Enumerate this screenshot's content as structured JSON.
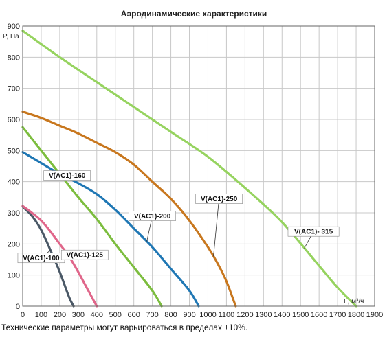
{
  "chart_data": {
    "type": "line",
    "title": "Аэродинамические характеристики",
    "xlabel": "L, м³/ч",
    "ylabel": "P, Па",
    "xlim": [
      0,
      1900
    ],
    "ylim": [
      0,
      900
    ],
    "xticks": [
      0,
      100,
      200,
      300,
      400,
      500,
      600,
      700,
      800,
      900,
      1000,
      1100,
      1200,
      1300,
      1400,
      1500,
      1600,
      1700,
      1800,
      1900
    ],
    "yticks": [
      0,
      100,
      200,
      300,
      400,
      500,
      600,
      700,
      800,
      900
    ],
    "grid": true,
    "legend": "inline labels",
    "series": [
      {
        "name": "V(AC1)-100",
        "color": "#4a5866",
        "x": [
          0,
          50,
          100,
          150,
          200,
          250,
          275
        ],
        "y": [
          320,
          290,
          245,
          180,
          110,
          30,
          0
        ]
      },
      {
        "name": "V(AC1)-125",
        "color": "#e0668a",
        "x": [
          0,
          50,
          100,
          150,
          200,
          250,
          300,
          350,
          400
        ],
        "y": [
          322,
          300,
          275,
          240,
          200,
          160,
          110,
          55,
          0
        ]
      },
      {
        "name": "V(AC1)-160",
        "color": "#7cbd3e",
        "x": [
          0,
          100,
          200,
          300,
          400,
          500,
          600,
          700,
          750
        ],
        "y": [
          575,
          500,
          425,
          350,
          280,
          200,
          125,
          50,
          0
        ]
      },
      {
        "name": "V(AC1)-200",
        "color": "#1f77b4",
        "x": [
          0,
          100,
          200,
          300,
          400,
          500,
          600,
          700,
          800,
          900,
          950
        ],
        "y": [
          495,
          460,
          425,
          395,
          360,
          310,
          250,
          190,
          120,
          50,
          0
        ]
      },
      {
        "name": "V(AC1)-250",
        "color": "#c8771e",
        "x": [
          0,
          100,
          200,
          300,
          400,
          500,
          600,
          700,
          800,
          900,
          1000,
          1050,
          1100,
          1150
        ],
        "y": [
          625,
          605,
          580,
          555,
          525,
          495,
          455,
          400,
          345,
          275,
          190,
          140,
          80,
          0
        ]
      },
      {
        "name": "V(AC1)- 315",
        "color": "#96d35f",
        "x": [
          0,
          200,
          400,
          600,
          800,
          1000,
          1200,
          1400,
          1600,
          1700,
          1800
        ],
        "y": [
          885,
          800,
          720,
          640,
          560,
          480,
          380,
          270,
          130,
          60,
          0
        ]
      }
    ],
    "annotations": [
      {
        "series": "V(AC1)-100",
        "text": "V(AC1)-100",
        "x": 100,
        "y": 155
      },
      {
        "series": "V(AC1)-125",
        "text": "V(AC1)-125",
        "x": 335,
        "y": 165
      },
      {
        "series": "V(AC1)-160",
        "text": "V(AC1)-160",
        "x": 240,
        "y": 420
      },
      {
        "series": "V(AC1)-200",
        "text": "V(AC1)-200",
        "x": 700,
        "y": 290
      },
      {
        "series": "V(AC1)-250",
        "text": "V(AC1)-250",
        "x": 1060,
        "y": 345
      },
      {
        "series": "V(AC1)- 315",
        "text": "V(AC1)- 315",
        "x": 1570,
        "y": 240
      }
    ]
  },
  "footnote": "Технические параметры могут варьироваться в пределах ±10%."
}
